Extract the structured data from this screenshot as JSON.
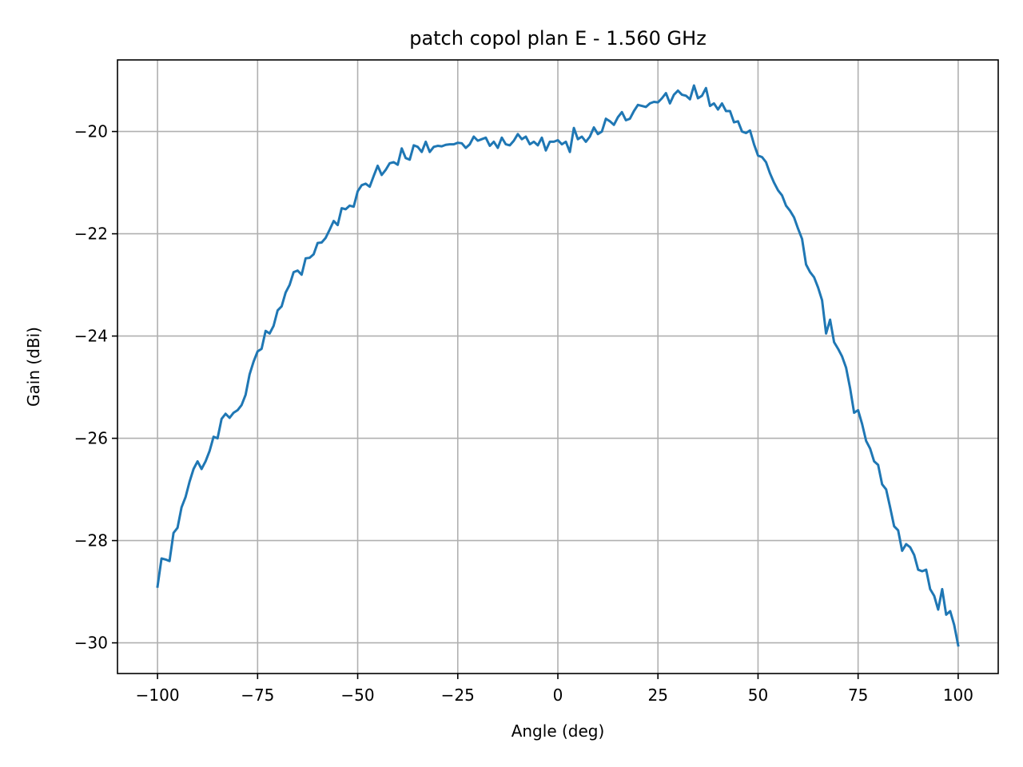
{
  "chart_data": {
    "type": "line",
    "title": "patch copol plan E - 1.560 GHz",
    "xlabel": "Angle (deg)",
    "ylabel": "Gain (dBi)",
    "xlim": [
      -110,
      110
    ],
    "ylim": [
      -30.6,
      -18.6
    ],
    "xticks": [
      -100,
      -75,
      -50,
      -25,
      0,
      25,
      50,
      75,
      100
    ],
    "xtick_labels": [
      "−100",
      "−75",
      "−50",
      "−25",
      "0",
      "25",
      "50",
      "75",
      "100"
    ],
    "yticks": [
      -30,
      -28,
      -26,
      -24,
      -22,
      -20
    ],
    "ytick_labels": [
      "−30",
      "−28",
      "−26",
      "−24",
      "−22",
      "−20"
    ],
    "grid": true,
    "line_color": "#1f77b4",
    "series": [
      {
        "x": [
          -100,
          -99,
          -98,
          -97,
          -96,
          -95,
          -94,
          -93,
          -92,
          -91,
          -90,
          -89,
          -88,
          -87,
          -86,
          -85,
          -84,
          -83,
          -82,
          -81,
          -80,
          -79,
          -78,
          -77,
          -76,
          -75,
          -74,
          -73,
          -72,
          -71,
          -70,
          -69,
          -68,
          -67,
          -66,
          -65,
          -64,
          -63,
          -62,
          -61,
          -60,
          -59,
          -58,
          -57,
          -56,
          -55,
          -54,
          -53,
          -52,
          -51,
          -50,
          -49,
          -48,
          -47,
          -46,
          -45,
          -44,
          -43,
          -42,
          -41,
          -40,
          -39,
          -38,
          -37,
          -36,
          -35,
          -34,
          -33,
          -32,
          -31,
          -30,
          -29,
          -28,
          -27,
          -26,
          -25,
          -24,
          -23,
          -22,
          -21,
          -20,
          -19,
          -18,
          -17,
          -16,
          -15,
          -14,
          -13,
          -12,
          -11,
          -10,
          -9,
          -8,
          -7,
          -6,
          -5,
          -4,
          -3,
          -2,
          -1,
          0,
          1,
          2,
          3,
          4,
          5,
          6,
          7,
          8,
          9,
          10,
          11,
          12,
          13,
          14,
          15,
          16,
          17,
          18,
          19,
          20,
          21,
          22,
          23,
          24,
          25,
          26,
          27,
          28,
          29,
          30,
          31,
          32,
          33,
          34,
          35,
          36,
          37,
          38,
          39,
          40,
          41,
          42,
          43,
          44,
          45,
          46,
          47,
          48,
          49,
          50,
          51,
          52,
          53,
          54,
          55,
          56,
          57,
          58,
          59,
          60,
          61,
          62,
          63,
          64,
          65,
          66,
          67,
          68,
          69,
          70,
          71,
          72,
          73,
          74,
          75,
          76,
          77,
          78,
          79,
          80,
          81,
          82,
          83,
          84,
          85,
          86,
          87,
          88,
          89,
          90,
          91,
          92,
          93,
          94,
          95,
          96,
          97,
          98,
          99,
          100
        ],
        "y": [
          -28.9,
          -28.35,
          -28.37,
          -28.4,
          -27.85,
          -27.75,
          -27.35,
          -27.15,
          -26.85,
          -26.6,
          -26.45,
          -26.6,
          -26.45,
          -26.25,
          -25.97,
          -26.0,
          -25.62,
          -25.52,
          -25.6,
          -25.5,
          -25.45,
          -25.35,
          -25.15,
          -24.75,
          -24.5,
          -24.3,
          -24.25,
          -23.9,
          -23.95,
          -23.8,
          -23.5,
          -23.42,
          -23.15,
          -23.0,
          -22.75,
          -22.72,
          -22.8,
          -22.48,
          -22.47,
          -22.4,
          -22.18,
          -22.17,
          -22.08,
          -21.92,
          -21.75,
          -21.83,
          -21.5,
          -21.52,
          -21.45,
          -21.47,
          -21.17,
          -21.05,
          -21.02,
          -21.08,
          -20.87,
          -20.67,
          -20.85,
          -20.75,
          -20.62,
          -20.6,
          -20.65,
          -20.33,
          -20.52,
          -20.55,
          -20.27,
          -20.3,
          -20.4,
          -20.2,
          -20.4,
          -20.3,
          -20.28,
          -20.29,
          -20.26,
          -20.25,
          -20.25,
          -20.22,
          -20.23,
          -20.32,
          -20.25,
          -20.1,
          -20.18,
          -20.15,
          -20.12,
          -20.28,
          -20.2,
          -20.32,
          -20.12,
          -20.25,
          -20.27,
          -20.18,
          -20.05,
          -20.15,
          -20.1,
          -20.25,
          -20.2,
          -20.27,
          -20.12,
          -20.37,
          -20.2,
          -20.2,
          -20.17,
          -20.25,
          -20.2,
          -20.4,
          -19.93,
          -20.15,
          -20.1,
          -20.2,
          -20.1,
          -19.92,
          -20.05,
          -20.0,
          -19.75,
          -19.8,
          -19.87,
          -19.72,
          -19.62,
          -19.78,
          -19.75,
          -19.6,
          -19.48,
          -19.5,
          -19.52,
          -19.45,
          -19.42,
          -19.43,
          -19.35,
          -19.25,
          -19.45,
          -19.28,
          -19.2,
          -19.28,
          -19.3,
          -19.37,
          -19.1,
          -19.35,
          -19.3,
          -19.15,
          -19.5,
          -19.45,
          -19.57,
          -19.45,
          -19.6,
          -19.6,
          -19.82,
          -19.8,
          -20.0,
          -20.03,
          -19.98,
          -20.25,
          -20.47,
          -20.5,
          -20.6,
          -20.82,
          -21.0,
          -21.15,
          -21.25,
          -21.45,
          -21.55,
          -21.68,
          -21.9,
          -22.1,
          -22.6,
          -22.75,
          -22.85,
          -23.05,
          -23.3,
          -23.95,
          -23.68,
          -24.12,
          -24.25,
          -24.4,
          -24.62,
          -25.02,
          -25.5,
          -25.45,
          -25.72,
          -26.05,
          -26.2,
          -26.45,
          -26.52,
          -26.9,
          -27.0,
          -27.35,
          -27.72,
          -27.8,
          -28.2,
          -28.07,
          -28.13,
          -28.28,
          -28.57,
          -28.6,
          -28.57,
          -28.95,
          -29.08,
          -29.35,
          -28.95,
          -29.45,
          -29.38,
          -29.65,
          -30.05
        ]
      }
    ]
  }
}
